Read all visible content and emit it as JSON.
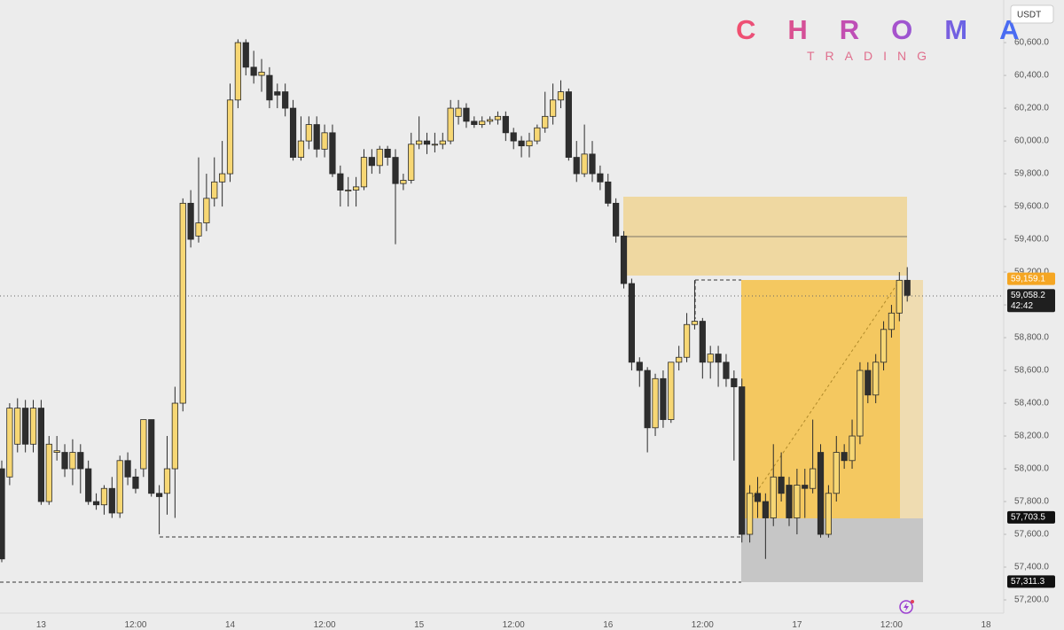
{
  "logo": {
    "title": "CHROMA",
    "subtitle": "TRADING"
  },
  "chart_data": {
    "type": "candlestick",
    "currency": "USDT",
    "up_color": "#f7d774",
    "down_color": "#2e2e2e",
    "grid": false,
    "ylim": [
      57119,
      60860
    ],
    "yticks": [
      {
        "value": 60600,
        "label": "60,600.0"
      },
      {
        "value": 60400,
        "label": "60,400.0"
      },
      {
        "value": 60200,
        "label": "60,200.0"
      },
      {
        "value": 60000,
        "label": "60,000.0"
      },
      {
        "value": 59800,
        "label": "59,800.0"
      },
      {
        "value": 59600,
        "label": "59,600.0"
      },
      {
        "value": 59400,
        "label": "59,400.0"
      },
      {
        "value": 59200,
        "label": "59,200.0"
      },
      {
        "value": 59000,
        "label": "59,000.0"
      },
      {
        "value": 58800,
        "label": "58,800.0"
      },
      {
        "value": 58600,
        "label": "58,600.0"
      },
      {
        "value": 58400,
        "label": "58,400.0"
      },
      {
        "value": 58200,
        "label": "58,200.0"
      },
      {
        "value": 58000,
        "label": "58,000.0"
      },
      {
        "value": 57800,
        "label": "57,800.0"
      },
      {
        "value": 57600,
        "label": "57,600.0"
      },
      {
        "value": 57400,
        "label": "57,400.0"
      },
      {
        "value": 57200,
        "label": "57,200.0"
      }
    ],
    "categories": [
      null,
      null,
      null,
      null,
      null,
      "13",
      null,
      null,
      null,
      null,
      null,
      null,
      null,
      null,
      null,
      null,
      null,
      "12:00",
      null,
      null,
      null,
      null,
      null,
      null,
      null,
      null,
      null,
      null,
      null,
      "14",
      null,
      null,
      null,
      null,
      null,
      null,
      null,
      null,
      null,
      null,
      null,
      "12:00",
      null,
      null,
      null,
      null,
      null,
      null,
      null,
      null,
      null,
      null,
      null,
      "15",
      null,
      null,
      null,
      null,
      null,
      null,
      null,
      null,
      null,
      null,
      null,
      "12:00",
      null,
      null,
      null,
      null,
      null,
      null,
      null,
      null,
      null,
      null,
      null,
      "16",
      null,
      null,
      null,
      null,
      null,
      null,
      null,
      null,
      null,
      null,
      null,
      "12:00",
      null,
      null,
      null,
      null,
      null,
      null,
      null,
      null,
      null,
      null,
      null,
      "17",
      null,
      null,
      null,
      null,
      null,
      null,
      null,
      null,
      null,
      null,
      null,
      "12:00",
      null,
      null,
      null,
      null,
      null,
      null,
      null,
      null,
      null,
      null,
      null,
      "18",
      null,
      null
    ],
    "open": [
      58000,
      57950,
      58150,
      58370,
      58150,
      58370,
      57800,
      58100,
      58100,
      58000,
      58100,
      58000,
      57800,
      57780,
      57880,
      57730,
      58050,
      57950,
      58000,
      58300,
      57850,
      57850,
      58000,
      58400,
      59620,
      59420,
      59500,
      59650,
      59750,
      59800,
      60250,
      60600,
      60450,
      60400,
      60400,
      60300,
      60300,
      60200,
      59900,
      60000,
      60100,
      59950,
      60050,
      59800,
      59700,
      59700,
      59720,
      59900,
      59850,
      59950,
      59900,
      59740,
      59760,
      59980,
      60000,
      59980,
      59980,
      60000,
      60150,
      60200,
      60120,
      60100,
      60120,
      60130,
      60150,
      60050,
      60000,
      59970,
      60000,
      60080,
      60150,
      60250,
      60300,
      59900,
      59800,
      59920,
      59800,
      59750,
      59620,
      59420,
      59130,
      58650,
      58600,
      58250,
      58550,
      58300,
      58650,
      58680,
      58880,
      58900,
      58650,
      58700,
      58650,
      58550,
      58500,
      57600,
      57850,
      57800,
      57700,
      57950,
      57900,
      57700,
      57900,
      57880,
      58100,
      57600,
      57850,
      58100,
      58050,
      58200,
      58600,
      58450,
      58650,
      58850,
      58950,
      59150,
      null,
      null,
      null,
      null,
      null,
      null,
      null,
      null,
      null,
      null,
      null,
      null
    ],
    "high": [
      58050,
      58400,
      58430,
      58420,
      58420,
      58420,
      58200,
      58200,
      58150,
      58180,
      58150,
      58050,
      57850,
      57900,
      57950,
      58080,
      58100,
      58000,
      58300,
      58300,
      57900,
      58200,
      58500,
      59650,
      59700,
      59900,
      59800,
      59900,
      60000,
      60350,
      60620,
      60620,
      60550,
      60500,
      60450,
      60350,
      60350,
      60250,
      60150,
      60150,
      60150,
      60100,
      60100,
      59850,
      59780,
      59780,
      59950,
      59950,
      59970,
      59970,
      59950,
      59800,
      60050,
      60150,
      60050,
      60050,
      60050,
      60250,
      60250,
      60230,
      60150,
      60150,
      60150,
      60180,
      60180,
      60080,
      60030,
      60050,
      60100,
      60300,
      60350,
      60370,
      60320,
      60000,
      60100,
      60000,
      59850,
      59800,
      59650,
      59450,
      59160,
      58680,
      58620,
      58580,
      58600,
      58650,
      58750,
      58950,
      59150,
      58920,
      58750,
      58750,
      58700,
      58600,
      58550,
      57900,
      57950,
      57850,
      58150,
      58100,
      57950,
      58000,
      58000,
      58300,
      58150,
      57900,
      58200,
      58150,
      58300,
      58650,
      58650,
      58700,
      58900,
      59000,
      59200,
      59230,
      null,
      null,
      null,
      null,
      null,
      null,
      null,
      null,
      null,
      null,
      null,
      null
    ],
    "low": [
      57430,
      57900,
      58100,
      58100,
      58100,
      57780,
      57780,
      58050,
      57950,
      57900,
      57850,
      57780,
      57750,
      57720,
      57700,
      57700,
      57900,
      57850,
      57950,
      57830,
      57600,
      57720,
      57700,
      58350,
      59350,
      59380,
      59450,
      59600,
      59600,
      59750,
      60200,
      60400,
      60350,
      60300,
      60200,
      60200,
      60150,
      59880,
      59880,
      59950,
      59900,
      59900,
      59780,
      59600,
      59600,
      59600,
      59700,
      59800,
      59800,
      59850,
      59370,
      59700,
      59740,
      59950,
      59920,
      59930,
      59950,
      59980,
      60100,
      60080,
      60080,
      60080,
      60100,
      60100,
      60000,
      59950,
      59900,
      59900,
      59980,
      60050,
      60100,
      60200,
      59880,
      59750,
      59780,
      59750,
      59700,
      59600,
      59380,
      59100,
      58600,
      58500,
      58100,
      58200,
      58250,
      58280,
      58600,
      58650,
      58850,
      58550,
      58550,
      58500,
      58500,
      58050,
      57550,
      57550,
      57700,
      57450,
      57650,
      57800,
      57650,
      57600,
      57700,
      57850,
      57580,
      57580,
      57800,
      58000,
      58000,
      58150,
      58400,
      58400,
      58600,
      58800,
      58900,
      59020,
      null,
      null,
      null,
      null,
      null,
      null,
      null,
      null,
      null,
      null,
      null,
      null
    ],
    "close": [
      57450,
      58370,
      58370,
      58150,
      58370,
      57800,
      58150,
      58110,
      58000,
      58100,
      58000,
      57800,
      57780,
      57880,
      57730,
      58050,
      57950,
      57880,
      58300,
      57850,
      57830,
      58000,
      58400,
      59620,
      59400,
      59500,
      59650,
      59750,
      59800,
      60250,
      60600,
      60450,
      60400,
      60420,
      60250,
      60280,
      60200,
      59900,
      60000,
      60100,
      59950,
      60050,
      59800,
      59700,
      59700,
      59720,
      59900,
      59850,
      59950,
      59900,
      59740,
      59760,
      59980,
      60000,
      59980,
      59980,
      60000,
      60200,
      60200,
      60120,
      60100,
      60120,
      60130,
      60150,
      60050,
      60000,
      59970,
      60000,
      60080,
      60150,
      60250,
      60300,
      59900,
      59800,
      59920,
      59800,
      59750,
      59620,
      59420,
      59130,
      58650,
      58600,
      58250,
      58550,
      58300,
      58650,
      58680,
      58880,
      58900,
      58650,
      58700,
      58650,
      58550,
      58500,
      57600,
      57850,
      57800,
      57700,
      57950,
      57850,
      57700,
      57900,
      57880,
      58000,
      57600,
      57850,
      58100,
      58050,
      58200,
      58600,
      58450,
      58650,
      58850,
      58950,
      59150,
      59058.2,
      null,
      null,
      null,
      null,
      null,
      null,
      null,
      null,
      null,
      null,
      null,
      null
    ],
    "price_labels": [
      {
        "value": 59159.1,
        "label": "59,159.1",
        "color": "#f5a623"
      },
      {
        "value": 59058.2,
        "label": "59,058.2",
        "countdown": "42:42",
        "color": "#1f1f1f"
      },
      {
        "value": 57703.5,
        "label": "57,703.5",
        "color": "#111111"
      },
      {
        "value": 57311.3,
        "label": "57,311.3",
        "color": "#111111"
      }
    ]
  }
}
